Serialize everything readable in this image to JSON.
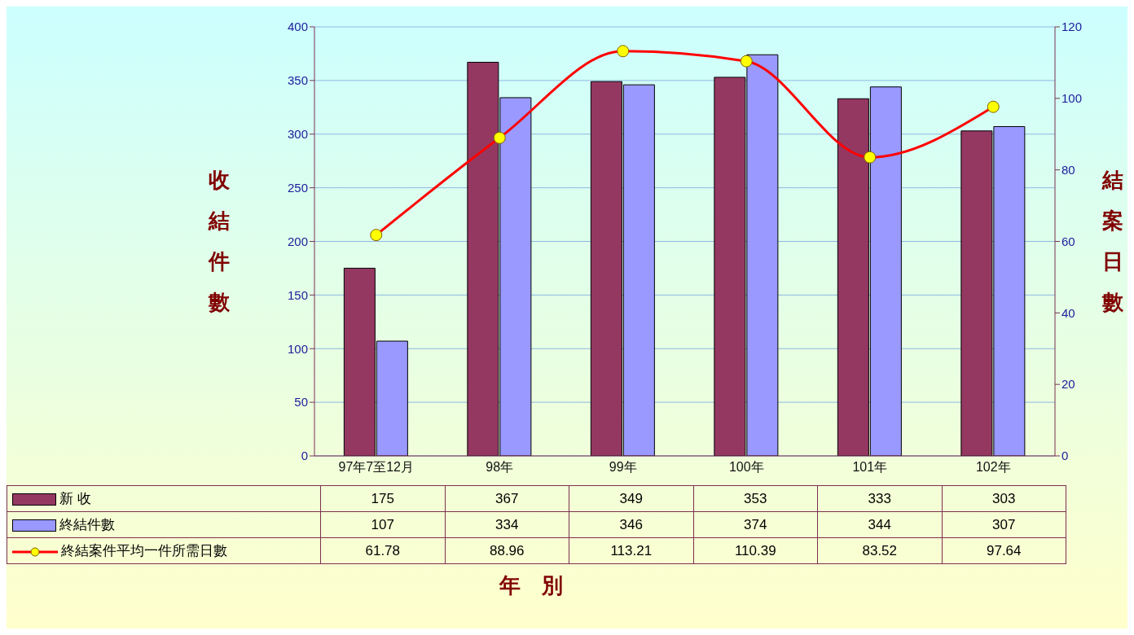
{
  "chart_data": {
    "type": "bar",
    "xlabel": "年　別",
    "ylabel": "收結件數",
    "y2label": "結案日數",
    "categories": [
      "97年7至12月",
      "98年",
      "99年",
      "100年",
      "101年",
      "102年"
    ],
    "series": [
      {
        "name": "新 收",
        "color": "#943862",
        "values": [
          175,
          367,
          349,
          353,
          333,
          303
        ]
      },
      {
        "name": "終結件數",
        "color": "#9999ff",
        "values": [
          107,
          334,
          346,
          374,
          344,
          307
        ]
      },
      {
        "name": "終結案件平均一件所需日數",
        "type": "line",
        "axis": "y2",
        "color": "#ff0000",
        "values": [
          61.78,
          88.96,
          113.21,
          110.39,
          83.52,
          97.64
        ]
      }
    ],
    "ylim": [
      0,
      400
    ],
    "yticks": [
      0,
      50,
      100,
      150,
      200,
      250,
      300,
      350,
      400
    ],
    "y2lim": [
      0,
      120
    ],
    "y2ticks": [
      0,
      20,
      40,
      60,
      80,
      100,
      120
    ],
    "grid": "y",
    "legend": "bottom",
    "marker": "circle",
    "data_labels": true
  }
}
